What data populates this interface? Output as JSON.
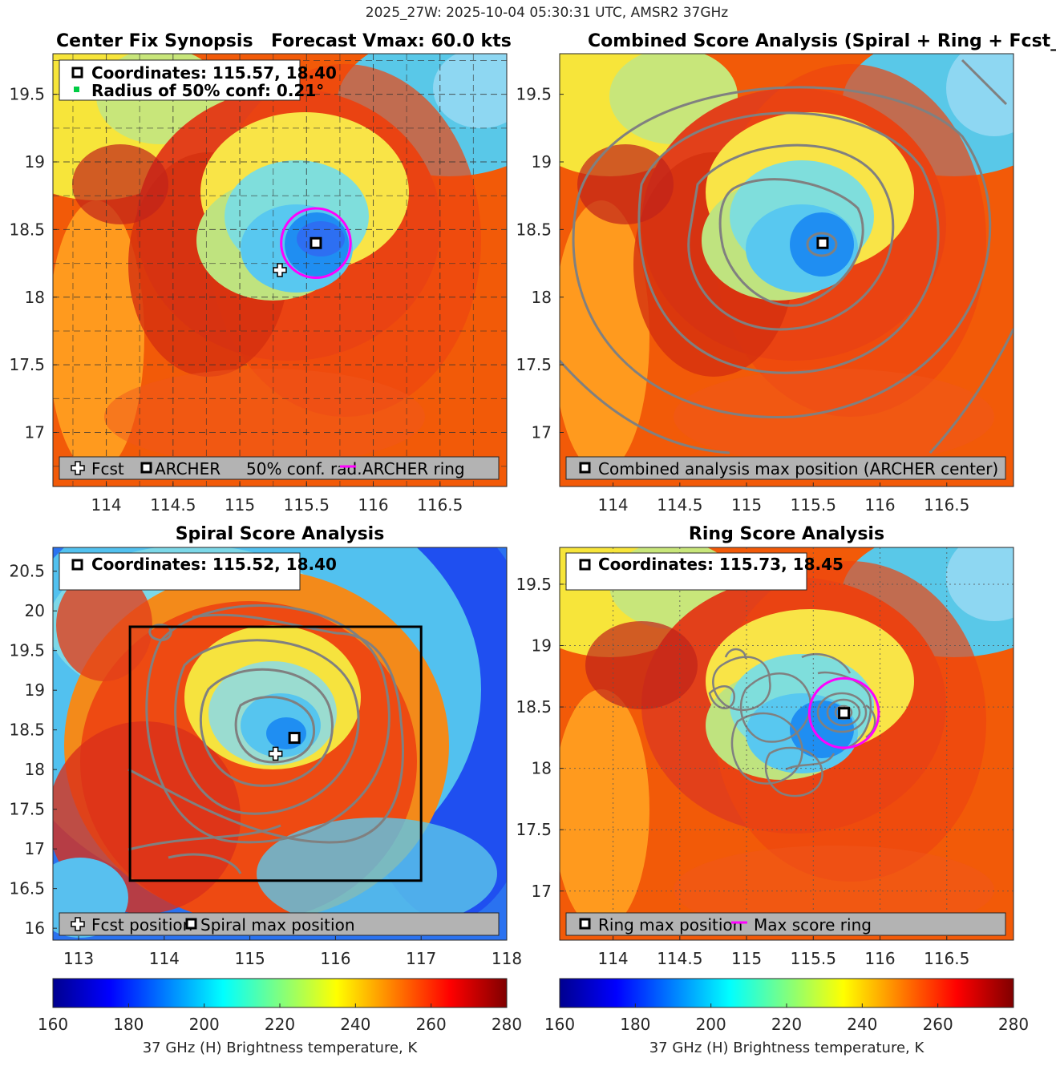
{
  "figure": {
    "suptitle": "2025_27W: 2025-10-04 05:30:31 UTC, AMSR2 37GHz",
    "colormap": "jet",
    "colors": {
      "ring": "#ff00ff",
      "contour": "#808080",
      "legend_bg": "#b3b3b3",
      "box": "#000000"
    }
  },
  "panels": [
    {
      "id": "synopsis",
      "title_left": "Center Fix Synopsis",
      "title_right": "Forecast Vmax: 60.0 kts",
      "info_lines": [
        "Coordinates: 115.57, 18.40",
        "Radius of 50% conf: 0.21°"
      ],
      "legend": [
        "Fcst",
        "ARCHER",
        "50% conf. rad.",
        "ARCHER ring"
      ]
    },
    {
      "id": "combined",
      "title": "Combined Score Analysis (Spiral + Ring + Fcst_Pe",
      "legend": [
        "Combined analysis max position (ARCHER center)"
      ]
    },
    {
      "id": "spiral",
      "title": "Spiral Score Analysis",
      "info_lines": [
        "Coordinates: 115.52, 18.40"
      ],
      "legend": [
        "Fcst position",
        "Spiral max position"
      ]
    },
    {
      "id": "ring",
      "title": "Ring Score Analysis",
      "info_lines": [
        "Coordinates: 115.73, 18.45"
      ],
      "legend": [
        "Ring max position",
        "Max score ring"
      ]
    }
  ],
  "colorbars": [
    {
      "ticks": [
        "160",
        "180",
        "200",
        "220",
        "240",
        "260",
        "280"
      ],
      "label": "37 GHz (H) Brightness temperature, K"
    },
    {
      "ticks": [
        "160",
        "180",
        "200",
        "220",
        "240",
        "260",
        "280"
      ],
      "label": "37 GHz (H) Brightness temperature, K"
    }
  ],
  "chart_data": [
    {
      "type": "heatmap",
      "title": "Center Fix Synopsis    Forecast Vmax: 60.0 kts",
      "xlim": [
        113.6,
        117.0
      ],
      "ylim": [
        16.6,
        19.8
      ],
      "xticks": [
        114,
        114.5,
        115,
        115.5,
        116,
        116.5
      ],
      "yticks": [
        17,
        17.5,
        18,
        18.5,
        19,
        19.5
      ],
      "grid": true,
      "center": {
        "lon": 115.57,
        "lat": 18.4
      },
      "fcst": {
        "lon": 115.3,
        "lat": 18.2
      },
      "ring_radius_deg": 0.26,
      "conf_radius_deg": 0.21,
      "clim": [
        160,
        280
      ]
    },
    {
      "type": "heatmap",
      "title": "Combined Score Analysis (Spiral + Ring + Fcst_Pe",
      "xlim": [
        113.6,
        117.0
      ],
      "ylim": [
        16.6,
        19.8
      ],
      "xticks": [
        114,
        114.5,
        115,
        115.5,
        116,
        116.5
      ],
      "yticks": [
        17,
        17.5,
        18,
        18.5,
        19,
        19.5
      ],
      "center": {
        "lon": 115.57,
        "lat": 18.4
      },
      "clim": [
        160,
        280
      ]
    },
    {
      "type": "heatmap",
      "title": "Spiral Score Analysis",
      "xlim": [
        112.7,
        118.0
      ],
      "ylim": [
        15.85,
        20.8
      ],
      "xticks": [
        113,
        114,
        115,
        116,
        117,
        118
      ],
      "yticks": [
        16,
        16.5,
        17,
        17.5,
        18,
        18.5,
        19,
        19.5,
        20,
        20.5
      ],
      "center": {
        "lon": 115.52,
        "lat": 18.4
      },
      "fcst": {
        "lon": 115.3,
        "lat": 18.2
      },
      "search_box": {
        "lon": [
          113.6,
          117.0
        ],
        "lat": [
          16.6,
          19.8
        ]
      },
      "clim": [
        160,
        280
      ]
    },
    {
      "type": "heatmap",
      "title": "Ring Score Analysis",
      "xlim": [
        113.6,
        117.0
      ],
      "ylim": [
        16.6,
        19.8
      ],
      "xticks": [
        114,
        114.5,
        115,
        115.5,
        116,
        116.5
      ],
      "yticks": [
        17,
        17.5,
        18,
        18.5,
        19,
        19.5
      ],
      "center": {
        "lon": 115.73,
        "lat": 18.45
      },
      "ring_radius_deg": 0.26,
      "clim": [
        160,
        280
      ]
    }
  ]
}
